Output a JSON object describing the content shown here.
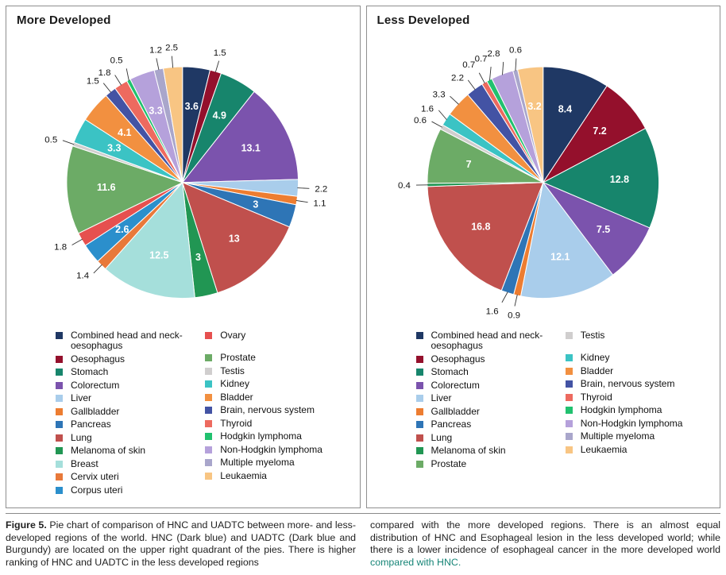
{
  "chart_data": [
    {
      "type": "pie",
      "title": "More Developed",
      "categories": [
        "Combined head and neck-oesophagus",
        "Oesophagus",
        "Stomach",
        "Colorectum",
        "Liver",
        "Gallbladder",
        "Pancreas",
        "Lung",
        "Melanoma of skin",
        "Breast",
        "Cervix uteri",
        "Corpus uteri",
        "Ovary",
        "Prostate",
        "Testis",
        "Kidney",
        "Bladder",
        "Brain, nervous system",
        "Thyroid",
        "Hodgkin lymphoma",
        "Non-Hodgkin lymphoma",
        "Multiple myeloma",
        "Leukaemia"
      ],
      "values": [
        3.6,
        1.5,
        4.9,
        13.1,
        2.2,
        1.1,
        3,
        13,
        3,
        12.5,
        1.4,
        2.6,
        1.8,
        11.6,
        0.5,
        3.3,
        4.1,
        1.5,
        1.8,
        0.5,
        3.3,
        1.2,
        2.5
      ],
      "colors": [
        "#1F3864",
        "#94102C",
        "#17856C",
        "#7B53AD",
        "#A9CDEB",
        "#ED7D31",
        "#2E75B6",
        "#C0504D",
        "#219653",
        "#A5DFDB",
        "#E8793A",
        "#2B8FCC",
        "#E6504F",
        "#6CAB66",
        "#D0CECE",
        "#3BC3C4",
        "#F29040",
        "#4353A4",
        "#ED6A5F",
        "#21C16F",
        "#B5A1DB",
        "#A9A6CB",
        "#F8C583"
      ],
      "label_placement": [
        "in",
        "out",
        "in",
        "in",
        "out",
        "out",
        "in",
        "in",
        "in",
        "in",
        "out",
        "in",
        "out",
        "in",
        "out",
        "in",
        "in",
        "out",
        "out",
        "out",
        "in",
        "out",
        "out"
      ],
      "legend_columns": [
        12,
        11
      ],
      "start_angle_deg": 0,
      "direction": "clockwise",
      "legend_position": "bottom"
    },
    {
      "type": "pie",
      "title": "Less Developed",
      "categories": [
        "Combined head and neck-oesophagus",
        "Oesophagus",
        "Stomach",
        "Colorectum",
        "Liver",
        "Gallbladder",
        "Pancreas",
        "Lung",
        "Melanoma of skin",
        "Prostate",
        "Testis",
        "Kidney",
        "Bladder",
        "Brain, nervous system",
        "Thyroid",
        "Hodgkin lymphoma",
        "Non-Hodgkin lymphoma",
        "Multiple myeloma",
        "Leukaemia"
      ],
      "values": [
        8.4,
        7.2,
        12.8,
        7.5,
        12.1,
        0.9,
        1.6,
        16.8,
        0.4,
        7,
        0.6,
        1.6,
        3.3,
        2.2,
        0.7,
        0.7,
        2.8,
        0.6,
        3.2
      ],
      "colors": [
        "#1F3864",
        "#94102C",
        "#17856C",
        "#7B53AD",
        "#A9CDEB",
        "#ED7D31",
        "#2E75B6",
        "#C0504D",
        "#219653",
        "#6CAB66",
        "#D0CECE",
        "#3BC3C4",
        "#F29040",
        "#4353A4",
        "#ED6A5F",
        "#21C16F",
        "#B5A1DB",
        "#A9A6CB",
        "#F8C583"
      ],
      "label_placement": [
        "in",
        "in",
        "in",
        "in",
        "in",
        "out",
        "out",
        "in",
        "out",
        "in",
        "out",
        "out",
        "out",
        "out",
        "out",
        "out",
        "out",
        "out",
        "in"
      ],
      "legend_columns": [
        10,
        9
      ],
      "start_angle_deg": 0,
      "direction": "clockwise",
      "legend_position": "bottom"
    }
  ],
  "caption": {
    "left": {
      "label": "Figure 5.",
      "text": " Pie chart of comparison of HNC and UADTC between more- and less-developed regions of the world. HNC (Dark blue) and UADTC (Dark blue and Burgundy) are located on the upper right quadrant of the pies. There is higher ranking of HNC and UADTC in the less developed regions"
    },
    "right": {
      "text": "compared with the more developed regions. There is an almost equal distribution of HNC and Esophageal lesion in the less developed world; while there is a lower incidence of esophageal cancer in the more developed world ",
      "highlight": "compared with HNC.",
      "highlight_color": "#178577"
    }
  }
}
